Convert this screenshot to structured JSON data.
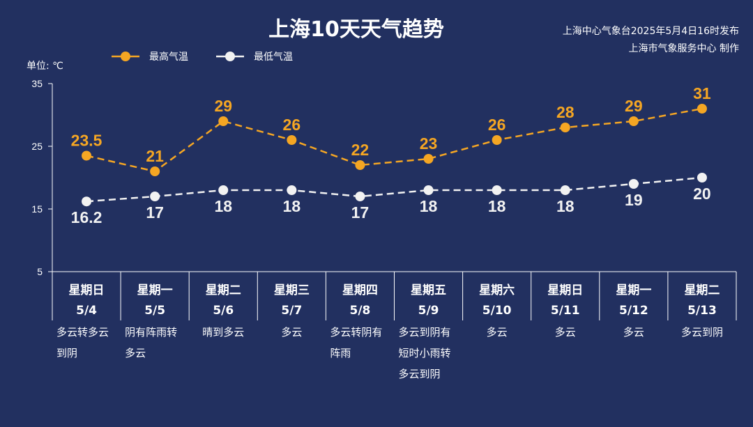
{
  "chart_data": {
    "type": "line",
    "title": "上海10天天气趋势",
    "source_line1": "上海中心气象台2025年5月4日16时发布",
    "source_line2": "上海市气象服务中心 制作",
    "ylabel": "单位: ℃",
    "ylim": [
      5,
      35
    ],
    "yticks": [
      5,
      15,
      25,
      35
    ],
    "legend_position": "top-left",
    "categories": [
      {
        "weekday": "星期日",
        "date": "5/4",
        "weather": [
          "多云转多云",
          "到阴"
        ]
      },
      {
        "weekday": "星期一",
        "date": "5/5",
        "weather": [
          "阴有阵雨转",
          "多云"
        ]
      },
      {
        "weekday": "星期二",
        "date": "5/6",
        "weather": [
          "晴到多云"
        ]
      },
      {
        "weekday": "星期三",
        "date": "5/7",
        "weather": [
          "多云"
        ]
      },
      {
        "weekday": "星期四",
        "date": "5/8",
        "weather": [
          "多云转阴有",
          "阵雨"
        ]
      },
      {
        "weekday": "星期五",
        "date": "5/9",
        "weather": [
          "多云到阴有",
          "短时小雨转",
          "多云到阴"
        ]
      },
      {
        "weekday": "星期六",
        "date": "5/10",
        "weather": [
          "多云"
        ]
      },
      {
        "weekday": "星期日",
        "date": "5/11",
        "weather": [
          "多云"
        ]
      },
      {
        "weekday": "星期一",
        "date": "5/12",
        "weather": [
          "多云"
        ]
      },
      {
        "weekday": "星期二",
        "date": "5/13",
        "weather": [
          "多云到阴"
        ]
      }
    ],
    "series": [
      {
        "name": "最高气温",
        "color": "#f5a623",
        "values": [
          23.5,
          21,
          29,
          26,
          22,
          23,
          26,
          28,
          29,
          31
        ],
        "labels": [
          "23.5",
          "21",
          "29",
          "26",
          "22",
          "23",
          "26",
          "28",
          "29",
          "31"
        ]
      },
      {
        "name": "最低气温",
        "color": "#f2f2f2",
        "values": [
          16.2,
          17,
          18,
          18,
          17,
          18,
          18,
          18,
          19,
          20
        ],
        "labels": [
          "16.2",
          "17",
          "18",
          "18",
          "17",
          "18",
          "18",
          "18",
          "19",
          "20"
        ]
      }
    ]
  }
}
